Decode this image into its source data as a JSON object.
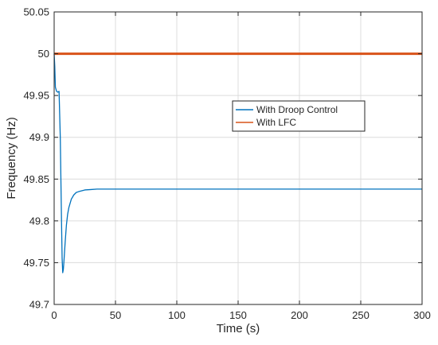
{
  "chart_data": {
    "type": "line",
    "title": "",
    "xlabel": "Time (s)",
    "ylabel": "Frequency (Hz)",
    "xlim": [
      0,
      300
    ],
    "ylim": [
      49.7,
      50.05
    ],
    "xticks": [
      0,
      50,
      100,
      150,
      200,
      250,
      300
    ],
    "yticks": [
      49.7,
      49.75,
      49.8,
      49.85,
      49.9,
      49.95,
      50,
      50.05
    ],
    "ytick_labels": [
      "49.7",
      "49.75",
      "49.8",
      "49.85",
      "49.9",
      "49.95",
      "50",
      "50.05"
    ],
    "grid": true,
    "legend_position": "center-right",
    "series": [
      {
        "name": "With Droop Control",
        "color": "#0072BD",
        "x": [
          0,
          0.5,
          1,
          2,
          3,
          4,
          5,
          6,
          6.5,
          7,
          7.5,
          8,
          9,
          10,
          11,
          12,
          14,
          16,
          18,
          20,
          25,
          30,
          35,
          40,
          50,
          100,
          150,
          200,
          250,
          300
        ],
        "y": [
          50.0,
          49.985,
          49.96,
          49.955,
          49.954,
          49.955,
          49.9,
          49.8,
          49.755,
          49.738,
          49.742,
          49.752,
          49.775,
          49.795,
          49.808,
          49.816,
          49.826,
          49.831,
          49.834,
          49.835,
          49.837,
          49.8375,
          49.838,
          49.838,
          49.838,
          49.838,
          49.838,
          49.838,
          49.838,
          49.838
        ]
      },
      {
        "name": "With LFC",
        "color": "#D95319",
        "x": [
          0,
          300
        ],
        "y": [
          50.0,
          50.0
        ]
      }
    ]
  }
}
